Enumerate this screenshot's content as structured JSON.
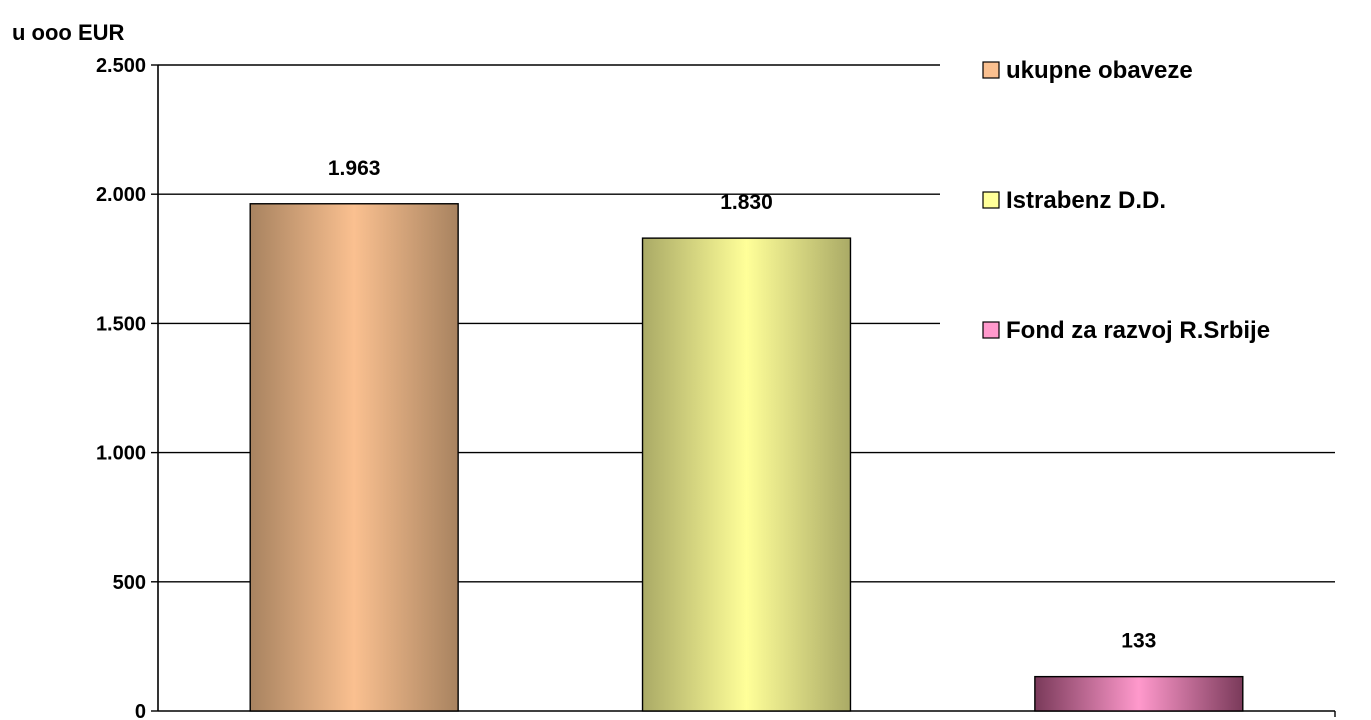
{
  "chart_data": {
    "type": "bar",
    "ylabel": "u ooo EUR",
    "ylim": [
      0,
      2500
    ],
    "yticks": [
      0,
      500,
      1000,
      1500,
      2000,
      2500
    ],
    "ytick_labels": [
      "0",
      "500",
      "1.000",
      "1.500",
      "2.000",
      "2.500"
    ],
    "grid": true,
    "legend_position": "right",
    "series": [
      {
        "name": "ukupne obaveze",
        "value": 1963,
        "label": "1.963",
        "color": "#FAC090",
        "edge": "#A88360"
      },
      {
        "name": "Istrabenz D.D.",
        "value": 1830,
        "label": "1.830",
        "color": "#FFFF99",
        "edge": "#AAAA66"
      },
      {
        "name": "Fond za razvoj R.Srbije",
        "value": 133,
        "label": "133",
        "color": "#FF99CC",
        "edge": "#7A3A5A"
      }
    ]
  }
}
